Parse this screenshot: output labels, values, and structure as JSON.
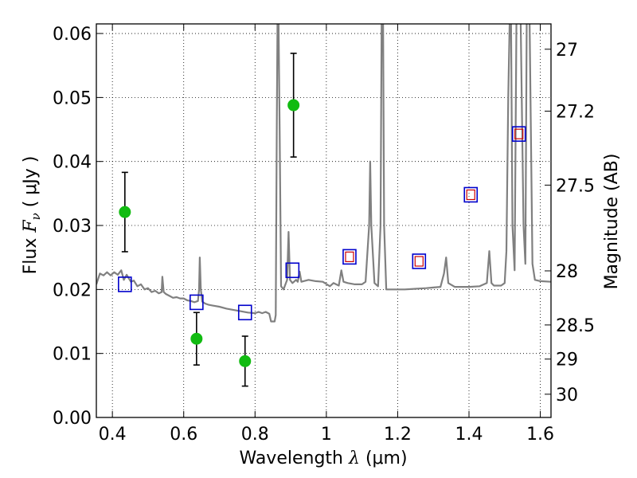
{
  "chart_data": {
    "type": "scatter",
    "xlabel_text": "Wavelength",
    "xlabel_symbol": "λ",
    "xlabel_unit": "(μm)",
    "ylabel_text": "Flux",
    "ylabel_symbol": "F",
    "ylabel_sub": "ν",
    "ylabel_unit": "( μJy )",
    "y2label": "Magnitude (AB)",
    "xlim": [
      0.355,
      1.63
    ],
    "ylim": [
      0.0,
      0.0615
    ],
    "xticks": [
      0.4,
      0.6,
      0.8,
      1.0,
      1.2,
      1.4,
      1.6
    ],
    "xtick_labels": [
      "0.4",
      "0.6",
      "0.8",
      "1",
      "1.2",
      "1.4",
      "1.6"
    ],
    "yticks": [
      0.0,
      0.01,
      0.02,
      0.03,
      0.04,
      0.05,
      0.06
    ],
    "ytick_labels": [
      "0.00",
      "0.01",
      "0.02",
      "0.03",
      "0.04",
      "0.05",
      "0.06"
    ],
    "mag_ticks": [
      "27",
      "27.2",
      "27.5",
      "28",
      "28.5",
      "29",
      "30"
    ],
    "grid": true,
    "colors": {
      "spectrum": "#808080",
      "observed": "#11bb11",
      "errorbar": "#000000",
      "model_box": "#0000cc",
      "model_inner": "#cc0000"
    },
    "series": [
      {
        "kind": "observed",
        "points": [
          {
            "x": 0.435,
            "y": 0.0321,
            "yerr_lo": 0.0062,
            "yerr_hi": 0.0062
          },
          {
            "x": 0.636,
            "y": 0.0123,
            "yerr_lo": 0.0041,
            "yerr_hi": 0.0041
          },
          {
            "x": 0.772,
            "y": 0.0088,
            "yerr_lo": 0.0039,
            "yerr_hi": 0.0039
          },
          {
            "x": 0.908,
            "y": 0.0488,
            "yerr_lo": 0.0081,
            "yerr_hi": 0.0081
          }
        ]
      },
      {
        "kind": "model_bandpass",
        "points": [
          {
            "x": 0.435,
            "y": 0.0208
          },
          {
            "x": 0.636,
            "y": 0.018
          },
          {
            "x": 0.772,
            "y": 0.0164
          },
          {
            "x": 0.905,
            "y": 0.023
          }
        ]
      },
      {
        "kind": "model_bandpass_filled",
        "points": [
          {
            "x": 1.065,
            "y": 0.0251
          },
          {
            "x": 1.26,
            "y": 0.0244
          },
          {
            "x": 1.405,
            "y": 0.0348
          },
          {
            "x": 1.54,
            "y": 0.0443
          }
        ]
      },
      {
        "kind": "spectrum",
        "points": [
          [
            0.355,
            0.0208
          ],
          [
            0.365,
            0.0225
          ],
          [
            0.375,
            0.0222
          ],
          [
            0.385,
            0.0227
          ],
          [
            0.395,
            0.0222
          ],
          [
            0.405,
            0.0227
          ],
          [
            0.415,
            0.0223
          ],
          [
            0.425,
            0.023
          ],
          [
            0.432,
            0.0215
          ],
          [
            0.44,
            0.0223
          ],
          [
            0.452,
            0.0212
          ],
          [
            0.46,
            0.0214
          ],
          [
            0.47,
            0.0205
          ],
          [
            0.48,
            0.0208
          ],
          [
            0.49,
            0.02
          ],
          [
            0.5,
            0.0202
          ],
          [
            0.51,
            0.0196
          ],
          [
            0.52,
            0.0198
          ],
          [
            0.53,
            0.0194
          ],
          [
            0.538,
            0.0196
          ],
          [
            0.54,
            0.022
          ],
          [
            0.544,
            0.0196
          ],
          [
            0.55,
            0.0193
          ],
          [
            0.56,
            0.019
          ],
          [
            0.57,
            0.0187
          ],
          [
            0.58,
            0.0188
          ],
          [
            0.59,
            0.0186
          ],
          [
            0.6,
            0.0186
          ],
          [
            0.61,
            0.0183
          ],
          [
            0.62,
            0.0182
          ],
          [
            0.63,
            0.018
          ],
          [
            0.64,
            0.0182
          ],
          [
            0.643,
            0.02
          ],
          [
            0.645,
            0.025
          ],
          [
            0.648,
            0.02
          ],
          [
            0.652,
            0.0181
          ],
          [
            0.66,
            0.0178
          ],
          [
            0.67,
            0.0176
          ],
          [
            0.68,
            0.0175
          ],
          [
            0.7,
            0.0173
          ],
          [
            0.72,
            0.017
          ],
          [
            0.74,
            0.0168
          ],
          [
            0.76,
            0.0166
          ],
          [
            0.78,
            0.0164
          ],
          [
            0.8,
            0.0163
          ],
          [
            0.81,
            0.0165
          ],
          [
            0.82,
            0.0163
          ],
          [
            0.83,
            0.0165
          ],
          [
            0.84,
            0.0162
          ],
          [
            0.845,
            0.015
          ],
          [
            0.855,
            0.015
          ],
          [
            0.858,
            0.016
          ],
          [
            0.861,
            0.045
          ],
          [
            0.863,
            0.062
          ],
          [
            0.866,
            0.062
          ],
          [
            0.869,
            0.045
          ],
          [
            0.873,
            0.0205
          ],
          [
            0.88,
            0.02
          ],
          [
            0.89,
            0.0215
          ],
          [
            0.894,
            0.029
          ],
          [
            0.898,
            0.0215
          ],
          [
            0.905,
            0.021
          ],
          [
            0.915,
            0.0215
          ],
          [
            0.92,
            0.0212
          ],
          [
            0.925,
            0.0228
          ],
          [
            0.93,
            0.0212
          ],
          [
            0.95,
            0.0215
          ],
          [
            0.97,
            0.0213
          ],
          [
            0.99,
            0.0212
          ],
          [
            1.01,
            0.0205
          ],
          [
            1.02,
            0.021
          ],
          [
            1.035,
            0.0206
          ],
          [
            1.042,
            0.023
          ],
          [
            1.048,
            0.0212
          ],
          [
            1.06,
            0.021
          ],
          [
            1.08,
            0.0208
          ],
          [
            1.1,
            0.0208
          ],
          [
            1.11,
            0.0212
          ],
          [
            1.12,
            0.03
          ],
          [
            1.123,
            0.04
          ],
          [
            1.126,
            0.03
          ],
          [
            1.135,
            0.021
          ],
          [
            1.145,
            0.0205
          ],
          [
            1.152,
            0.03
          ],
          [
            1.155,
            0.062
          ],
          [
            1.159,
            0.062
          ],
          [
            1.162,
            0.03
          ],
          [
            1.168,
            0.02
          ],
          [
            1.2,
            0.02
          ],
          [
            1.22,
            0.02
          ],
          [
            1.25,
            0.0201
          ],
          [
            1.28,
            0.0202
          ],
          [
            1.3,
            0.0203
          ],
          [
            1.32,
            0.0204
          ],
          [
            1.33,
            0.0225
          ],
          [
            1.336,
            0.025
          ],
          [
            1.342,
            0.021
          ],
          [
            1.36,
            0.0204
          ],
          [
            1.4,
            0.0204
          ],
          [
            1.43,
            0.0205
          ],
          [
            1.45,
            0.021
          ],
          [
            1.457,
            0.026
          ],
          [
            1.463,
            0.021
          ],
          [
            1.47,
            0.0206
          ],
          [
            1.49,
            0.0206
          ],
          [
            1.5,
            0.021
          ],
          [
            1.505,
            0.026
          ],
          [
            1.51,
            0.05
          ],
          [
            1.514,
            0.062
          ],
          [
            1.518,
            0.062
          ],
          [
            1.522,
            0.03
          ],
          [
            1.528,
            0.023
          ],
          [
            1.533,
            0.062
          ],
          [
            1.545,
            0.062
          ],
          [
            1.553,
            0.03
          ],
          [
            1.558,
            0.024
          ],
          [
            1.562,
            0.062
          ],
          [
            1.57,
            0.062
          ],
          [
            1.578,
            0.024
          ],
          [
            1.585,
            0.0215
          ],
          [
            1.6,
            0.0213
          ],
          [
            1.63,
            0.0212
          ]
        ]
      }
    ]
  }
}
